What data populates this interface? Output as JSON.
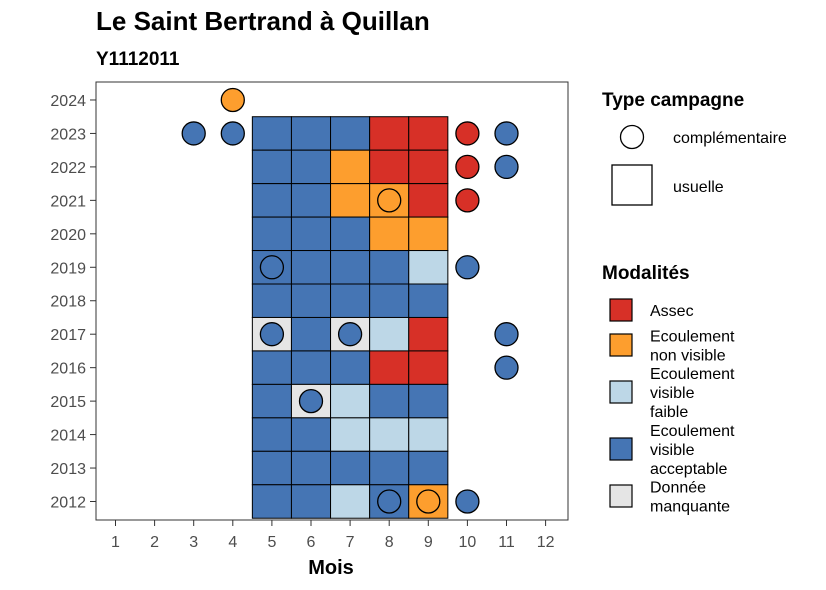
{
  "chart_data": {
    "type": "heatmap",
    "title": "Le Saint Bertrand à Quillan",
    "subtitle": "Y1112011",
    "xlabel": "Mois",
    "ylabel": "",
    "x_ticks": [
      "1",
      "2",
      "3",
      "4",
      "5",
      "6",
      "7",
      "8",
      "9",
      "10",
      "11",
      "12"
    ],
    "y_ticks": [
      "2012",
      "2013",
      "2014",
      "2015",
      "2016",
      "2017",
      "2018",
      "2019",
      "2020",
      "2021",
      "2022",
      "2023",
      "2024"
    ],
    "xlim": [
      0.5,
      12.5
    ],
    "ylim": [
      2011.5,
      2024.5
    ],
    "grid": false,
    "legend_type": {
      "title": "Type campagne",
      "entries": [
        {
          "key": "complementaire",
          "label": "complémentaire",
          "shape": "circle"
        },
        {
          "key": "usuelle",
          "label": "usuelle",
          "shape": "square"
        }
      ]
    },
    "legend_modalites": {
      "title": "Modalités",
      "entries": [
        {
          "key": "assec",
          "lines": [
            "Assec"
          ],
          "color": "#d73027"
        },
        {
          "key": "ecoul_nv",
          "lines": [
            "Ecoulement",
            "non visible"
          ],
          "color": "#fd9e2e"
        },
        {
          "key": "ecoul_vf",
          "lines": [
            "Ecoulement",
            "visible",
            "faible"
          ],
          "color": "#bdd7e7"
        },
        {
          "key": "ecoul_va",
          "lines": [
            "Ecoulement",
            "visible",
            "acceptable"
          ],
          "color": "#4575b4"
        },
        {
          "key": "manquant",
          "lines": [
            "Donnée",
            "manquante"
          ],
          "color": "#e5e5e5"
        }
      ]
    },
    "usuelle": [
      {
        "year": 2023,
        "months": [
          "ecoul_va",
          "ecoul_va",
          "ecoul_va",
          "assec",
          "assec"
        ]
      },
      {
        "year": 2022,
        "months": [
          "ecoul_va",
          "ecoul_va",
          "ecoul_nv",
          "assec",
          "assec"
        ]
      },
      {
        "year": 2021,
        "months": [
          "ecoul_va",
          "ecoul_va",
          "ecoul_nv",
          "ecoul_nv",
          "assec"
        ]
      },
      {
        "year": 2020,
        "months": [
          "ecoul_va",
          "ecoul_va",
          "ecoul_va",
          "ecoul_nv",
          "ecoul_nv"
        ]
      },
      {
        "year": 2019,
        "months": [
          "ecoul_va",
          "ecoul_va",
          "ecoul_va",
          "ecoul_va",
          "ecoul_vf"
        ]
      },
      {
        "year": 2018,
        "months": [
          "ecoul_va",
          "ecoul_va",
          "ecoul_va",
          "ecoul_va",
          "ecoul_va"
        ]
      },
      {
        "year": 2017,
        "months": [
          "manquant",
          "ecoul_va",
          "manquant",
          "ecoul_vf",
          "assec"
        ]
      },
      {
        "year": 2016,
        "months": [
          "ecoul_va",
          "ecoul_va",
          "ecoul_va",
          "assec",
          "assec"
        ]
      },
      {
        "year": 2015,
        "months": [
          "ecoul_va",
          "manquant",
          "ecoul_vf",
          "ecoul_va",
          "ecoul_va"
        ]
      },
      {
        "year": 2014,
        "months": [
          "ecoul_va",
          "ecoul_va",
          "ecoul_vf",
          "ecoul_vf",
          "ecoul_vf"
        ]
      },
      {
        "year": 2013,
        "months": [
          "ecoul_va",
          "ecoul_va",
          "ecoul_va",
          "ecoul_va",
          "ecoul_va"
        ]
      },
      {
        "year": 2012,
        "months": [
          "ecoul_va",
          "ecoul_va",
          "ecoul_vf",
          "ecoul_va",
          "ecoul_nv"
        ]
      }
    ],
    "usuelle_month_start": 5,
    "complementaire": [
      {
        "year": 2024,
        "month": 4,
        "mod": "ecoul_nv"
      },
      {
        "year": 2023,
        "month": 3,
        "mod": "ecoul_va"
      },
      {
        "year": 2023,
        "month": 4,
        "mod": "ecoul_va"
      },
      {
        "year": 2023,
        "month": 10,
        "mod": "assec"
      },
      {
        "year": 2023,
        "month": 11,
        "mod": "ecoul_va"
      },
      {
        "year": 2022,
        "month": 10,
        "mod": "assec"
      },
      {
        "year": 2022,
        "month": 11,
        "mod": "ecoul_va"
      },
      {
        "year": 2021,
        "month": 8,
        "mod": "ecoul_nv"
      },
      {
        "year": 2021,
        "month": 10,
        "mod": "assec"
      },
      {
        "year": 2019,
        "month": 5,
        "mod": "ecoul_va"
      },
      {
        "year": 2019,
        "month": 10,
        "mod": "ecoul_va"
      },
      {
        "year": 2017,
        "month": 5,
        "mod": "ecoul_va"
      },
      {
        "year": 2017,
        "month": 7,
        "mod": "ecoul_va"
      },
      {
        "year": 2017,
        "month": 11,
        "mod": "ecoul_va"
      },
      {
        "year": 2016,
        "month": 11,
        "mod": "ecoul_va"
      },
      {
        "year": 2015,
        "month": 6,
        "mod": "ecoul_va"
      },
      {
        "year": 2012,
        "month": 8,
        "mod": "ecoul_va"
      },
      {
        "year": 2012,
        "month": 9,
        "mod": "ecoul_nv"
      },
      {
        "year": 2012,
        "month": 10,
        "mod": "ecoul_va"
      }
    ]
  }
}
